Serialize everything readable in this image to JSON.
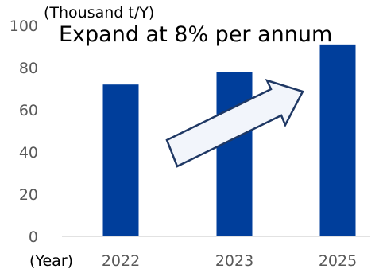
{
  "chart_data": {
    "type": "bar",
    "categories": [
      "2022",
      "2023",
      "2025"
    ],
    "values": [
      72,
      78,
      91
    ],
    "ylabel": "(Thousand t/Y)",
    "xlabel": "(Year)",
    "ylim": [
      0,
      100
    ],
    "yticks": [
      "0",
      "20",
      "40",
      "60",
      "80",
      "100"
    ],
    "annotation": "Expand at 8% per annum",
    "grid": false,
    "bar_color": "#003E9B",
    "arrow_fill": "#F2F5FB",
    "arrow_stroke": "#1F3864"
  }
}
